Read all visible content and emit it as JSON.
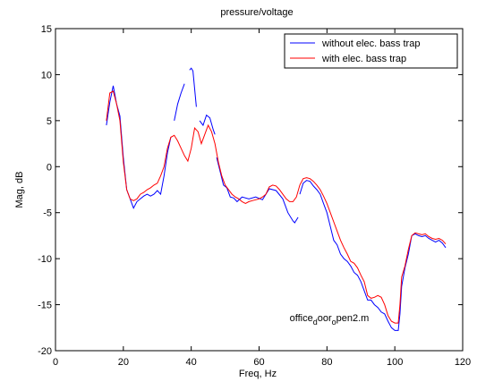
{
  "chart_data": {
    "type": "line",
    "title": "pressure/voltage",
    "xlabel": "Freq, Hz",
    "ylabel": "Mag, dB",
    "xlim": [
      0,
      120
    ],
    "ylim": [
      -20,
      15
    ],
    "xticks": [
      0,
      20,
      40,
      60,
      80,
      100,
      120
    ],
    "yticks": [
      -20,
      -15,
      -10,
      -5,
      0,
      5,
      10,
      15
    ],
    "grid": false,
    "legend_position": "top-right",
    "annotation": {
      "parts": [
        {
          "text": "office",
          "script": "normal"
        },
        {
          "text": "d",
          "script": "sub"
        },
        {
          "text": "oor",
          "script": "normal"
        },
        {
          "text": "o",
          "script": "sub"
        },
        {
          "text": "pen2.m",
          "script": "normal"
        }
      ],
      "x": 69,
      "y": -16.8
    },
    "series": [
      {
        "name": "without elec. bass trap",
        "color": "#0000ff",
        "segments": [
          [
            [
              15,
              4.5
            ],
            [
              16,
              7
            ],
            [
              17,
              8.8
            ],
            [
              18,
              6.8
            ],
            [
              19,
              5.5
            ],
            [
              20,
              1
            ],
            [
              21,
              -2.5
            ],
            [
              22,
              -3.5
            ],
            [
              23,
              -4.5
            ],
            [
              24,
              -3.8
            ],
            [
              25,
              -3.5
            ],
            [
              26,
              -3.2
            ],
            [
              27,
              -3
            ],
            [
              28,
              -3.2
            ],
            [
              29,
              -3
            ],
            [
              30,
              -2.6
            ],
            [
              31,
              -3
            ],
            [
              32,
              -1
            ],
            [
              33,
              1.5
            ],
            [
              34,
              3.2
            ]
          ],
          [
            [
              35,
              5
            ],
            [
              36,
              6.8
            ],
            [
              37,
              8
            ],
            [
              38,
              9
            ]
          ],
          [
            [
              39.5,
              10.5
            ],
            [
              40,
              10.7
            ],
            [
              40.5,
              10.4
            ],
            [
              41.5,
              6.5
            ]
          ],
          [
            [
              42.5,
              5
            ],
            [
              43.5,
              4.5
            ],
            [
              44.5,
              5.6
            ],
            [
              45.5,
              5.3
            ],
            [
              46.5,
              4
            ],
            [
              47,
              3.5
            ]
          ],
          [
            [
              47.5,
              1
            ],
            [
              48.5,
              -0.5
            ],
            [
              49.5,
              -2
            ],
            [
              50.5,
              -2.3
            ],
            [
              51.5,
              -3.3
            ],
            [
              52.5,
              -3.4
            ],
            [
              53.5,
              -3.8
            ],
            [
              55,
              -3.3
            ],
            [
              57,
              -3.5
            ],
            [
              59,
              -3.3
            ],
            [
              61,
              -3.6
            ],
            [
              63,
              -2.4
            ],
            [
              65,
              -2.6
            ],
            [
              67,
              -3.5
            ],
            [
              68.5,
              -5
            ],
            [
              70,
              -5.9
            ],
            [
              70.5,
              -6.1
            ],
            [
              71.5,
              -5.5
            ]
          ],
          [
            [
              72,
              -3
            ],
            [
              73,
              -1.8
            ],
            [
              74,
              -1.5
            ],
            [
              75,
              -1.6
            ],
            [
              76,
              -2.1
            ],
            [
              77,
              -2.5
            ],
            [
              78,
              -3
            ],
            [
              79,
              -4
            ],
            [
              80,
              -5
            ],
            [
              81,
              -6.5
            ],
            [
              82,
              -8
            ],
            [
              83,
              -8.5
            ],
            [
              84,
              -9.5
            ],
            [
              85,
              -10
            ],
            [
              86,
              -10.3
            ],
            [
              87,
              -10.8
            ],
            [
              88,
              -11.5
            ],
            [
              89,
              -11.8
            ],
            [
              90,
              -12.5
            ],
            [
              91,
              -13.5
            ],
            [
              92,
              -14.5
            ],
            [
              93,
              -14.5
            ],
            [
              94,
              -15
            ],
            [
              95,
              -15.3
            ],
            [
              96,
              -15.8
            ],
            [
              97,
              -16
            ],
            [
              98,
              -16.8
            ],
            [
              99,
              -17.5
            ],
            [
              100,
              -17.8
            ],
            [
              101,
              -17.8
            ],
            [
              101.5,
              -16
            ],
            [
              102,
              -13
            ],
            [
              103,
              -11
            ],
            [
              104,
              -9.5
            ],
            [
              105,
              -7.5
            ],
            [
              106,
              -7.3
            ],
            [
              107,
              -7.5
            ],
            [
              108,
              -7.6
            ],
            [
              109,
              -7.5
            ],
            [
              110,
              -7.8
            ],
            [
              111,
              -8
            ],
            [
              112,
              -8.2
            ],
            [
              113,
              -8
            ],
            [
              114,
              -8.3
            ],
            [
              115,
              -8.8
            ]
          ]
        ]
      },
      {
        "name": "with elec. bass trap",
        "color": "#ff0000",
        "segments": [
          [
            [
              15,
              5
            ],
            [
              16,
              8
            ],
            [
              17,
              8.2
            ],
            [
              18,
              6.8
            ],
            [
              19,
              5
            ],
            [
              20,
              0.5
            ],
            [
              21,
              -2.5
            ],
            [
              22,
              -3.5
            ],
            [
              23,
              -3.7
            ],
            [
              24,
              -3.5
            ],
            [
              25,
              -3
            ],
            [
              26,
              -2.8
            ],
            [
              27,
              -2.5
            ],
            [
              28,
              -2.3
            ],
            [
              29,
              -2
            ],
            [
              30,
              -1.8
            ],
            [
              31,
              -1
            ],
            [
              32,
              0
            ],
            [
              33,
              2
            ],
            [
              34,
              3.2
            ],
            [
              35,
              3.4
            ],
            [
              36,
              2.8
            ],
            [
              37,
              2
            ],
            [
              38,
              1.2
            ],
            [
              39,
              0.6
            ],
            [
              40,
              2
            ],
            [
              41,
              4.2
            ],
            [
              42,
              3.8
            ],
            [
              43,
              2.5
            ],
            [
              44,
              3.5
            ],
            [
              45,
              4.5
            ],
            [
              46,
              3.8
            ],
            [
              47,
              2.5
            ],
            [
              48,
              0.5
            ],
            [
              49,
              -1
            ],
            [
              50,
              -2
            ],
            [
              51,
              -2.5
            ],
            [
              52,
              -3
            ],
            [
              53,
              -3.3
            ],
            [
              54,
              -3.5
            ],
            [
              55,
              -3.8
            ],
            [
              56,
              -4
            ],
            [
              57,
              -3.8
            ],
            [
              58,
              -3.7
            ],
            [
              59,
              -3.6
            ],
            [
              60,
              -3.5
            ],
            [
              61,
              -3.3
            ],
            [
              62,
              -3
            ],
            [
              63,
              -2.2
            ],
            [
              64,
              -2
            ],
            [
              65,
              -2.1
            ],
            [
              66,
              -2.5
            ],
            [
              67,
              -3
            ],
            [
              68,
              -3.5
            ],
            [
              69,
              -3.8
            ],
            [
              70,
              -3.8
            ],
            [
              71,
              -3.3
            ],
            [
              72,
              -2
            ],
            [
              73,
              -1.3
            ],
            [
              74,
              -1.2
            ],
            [
              75,
              -1.3
            ],
            [
              76,
              -1.6
            ],
            [
              77,
              -2
            ],
            [
              78,
              -2.5
            ],
            [
              79,
              -3.2
            ],
            [
              80,
              -4
            ],
            [
              81,
              -5
            ],
            [
              82,
              -6
            ],
            [
              83,
              -7
            ],
            [
              84,
              -8
            ],
            [
              85,
              -8.8
            ],
            [
              86,
              -9.5
            ],
            [
              87,
              -10.3
            ],
            [
              88,
              -10.5
            ],
            [
              89,
              -11
            ],
            [
              90,
              -11.8
            ],
            [
              91,
              -12.5
            ],
            [
              92,
              -14
            ],
            [
              93,
              -14.3
            ],
            [
              94,
              -14.2
            ],
            [
              95,
              -14
            ],
            [
              96,
              -14.2
            ],
            [
              97,
              -15
            ],
            [
              98,
              -16.2
            ],
            [
              99,
              -16.8
            ],
            [
              100,
              -17
            ],
            [
              101,
              -17
            ],
            [
              101.5,
              -15
            ],
            [
              102,
              -12
            ],
            [
              103,
              -10.8
            ],
            [
              104,
              -9
            ],
            [
              105,
              -7.5
            ],
            [
              106,
              -7.2
            ],
            [
              107,
              -7.3
            ],
            [
              108,
              -7.4
            ],
            [
              109,
              -7.3
            ],
            [
              110,
              -7.6
            ],
            [
              111,
              -7.8
            ],
            [
              112,
              -7.9
            ],
            [
              113,
              -7.8
            ],
            [
              114,
              -8
            ],
            [
              115,
              -8.4
            ]
          ]
        ]
      }
    ]
  }
}
